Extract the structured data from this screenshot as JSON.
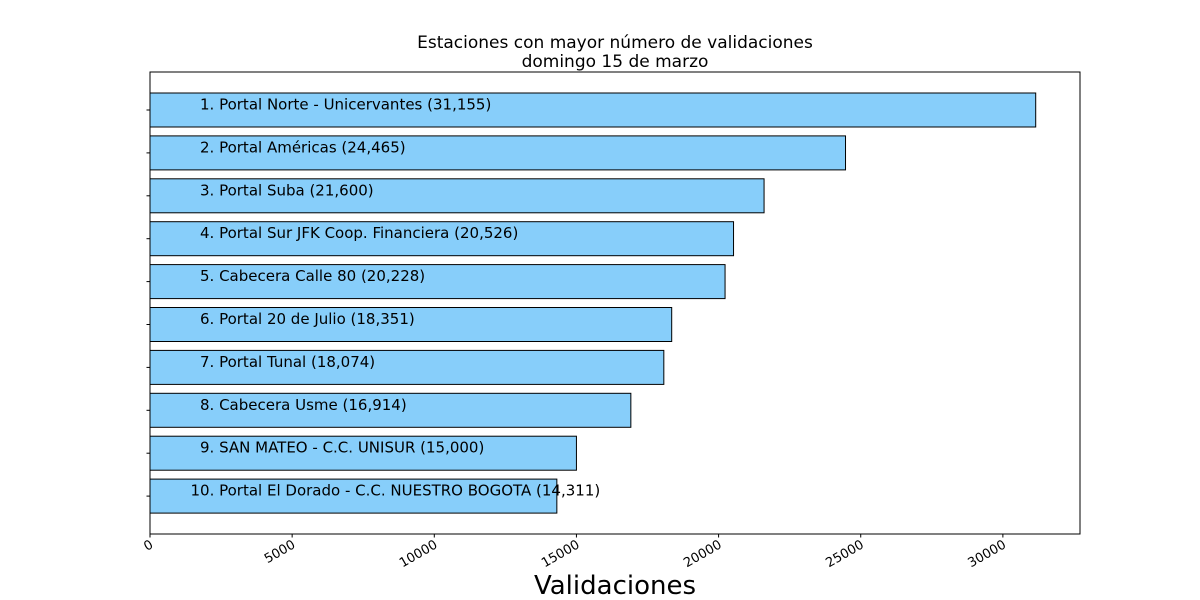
{
  "chart_data": {
    "type": "bar",
    "orientation": "horizontal",
    "title": [
      "Estaciones con mayor número de validaciones",
      "domingo 15 de marzo"
    ],
    "xlabel": "Validaciones",
    "ylabel": "",
    "xlim": [
      0,
      32713
    ],
    "xticks": [
      0,
      5000,
      10000,
      15000,
      20000,
      25000,
      30000
    ],
    "xtick_labels": [
      "0",
      "5000",
      "10000",
      "15000",
      "20000",
      "25000",
      "30000"
    ],
    "xtick_rotation_deg": 30,
    "grid": false,
    "legend": "none",
    "bar_color": "#87CEFA",
    "bar_edge_color": "#000000",
    "categories": [
      "1. Portal Norte - Unicervantes (31,155)",
      "2. Portal Américas (24,465)",
      "3. Portal Suba (21,600)",
      "4. Portal Sur JFK Coop. Financiera (20,526)",
      "5. Cabecera Calle 80 (20,228)",
      "6. Portal 20 de Julio (18,351)",
      "7. Portal Tunal (18,074)",
      "8. Cabecera Usme (16,914)",
      "9. SAN MATEO - C.C. UNISUR (15,000)",
      "10. Portal El Dorado - C.C. NUESTRO BOGOTA (14,311)"
    ],
    "values": [
      31155,
      24465,
      21600,
      20526,
      20228,
      18351,
      18074,
      16914,
      15000,
      14311
    ]
  }
}
